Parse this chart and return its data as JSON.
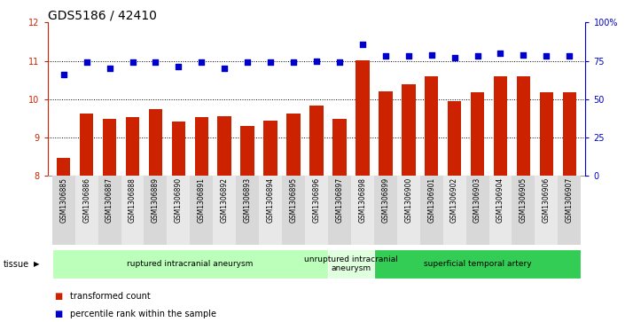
{
  "title": "GDS5186 / 42410",
  "samples": [
    "GSM1306885",
    "GSM1306886",
    "GSM1306887",
    "GSM1306888",
    "GSM1306889",
    "GSM1306890",
    "GSM1306891",
    "GSM1306892",
    "GSM1306893",
    "GSM1306894",
    "GSM1306895",
    "GSM1306896",
    "GSM1306897",
    "GSM1306898",
    "GSM1306899",
    "GSM1306900",
    "GSM1306901",
    "GSM1306902",
    "GSM1306903",
    "GSM1306904",
    "GSM1306905",
    "GSM1306906",
    "GSM1306907"
  ],
  "bar_values": [
    8.45,
    9.62,
    9.48,
    9.52,
    9.73,
    9.42,
    9.52,
    9.55,
    9.3,
    9.43,
    9.62,
    9.82,
    9.48,
    11.02,
    10.2,
    10.38,
    10.6,
    9.95,
    10.18,
    10.6,
    10.6,
    10.18,
    10.18
  ],
  "dot_values": [
    66,
    74,
    70,
    74,
    74,
    71,
    74,
    70,
    74,
    74,
    74,
    75,
    74,
    86,
    78,
    78,
    79,
    77,
    78,
    80,
    79,
    78,
    78
  ],
  "ylim_left": [
    8,
    12
  ],
  "ylim_right": [
    0,
    100
  ],
  "yticks_left": [
    8,
    9,
    10,
    11,
    12
  ],
  "yticks_right": [
    0,
    25,
    50,
    75,
    100
  ],
  "ytick_labels_right": [
    "0",
    "25",
    "50",
    "75",
    "100%"
  ],
  "bar_color": "#cc2200",
  "dot_color": "#0000cc",
  "bg_color": "#ffffff",
  "tissue_groups": [
    {
      "label": "ruptured intracranial aneurysm",
      "start": 0,
      "end": 12,
      "color": "#bbffbb"
    },
    {
      "label": "unruptured intracranial\naneurysm",
      "start": 12,
      "end": 14,
      "color": "#dfffdf"
    },
    {
      "label": "superficial temporal artery",
      "start": 14,
      "end": 23,
      "color": "#33cc55"
    }
  ],
  "legend_items": [
    {
      "label": "transformed count",
      "color": "#cc2200"
    },
    {
      "label": "percentile rank within the sample",
      "color": "#0000cc"
    }
  ],
  "tissue_label": "tissue",
  "title_fontsize": 10,
  "tick_fontsize": 7,
  "xtick_fontsize": 5.5
}
